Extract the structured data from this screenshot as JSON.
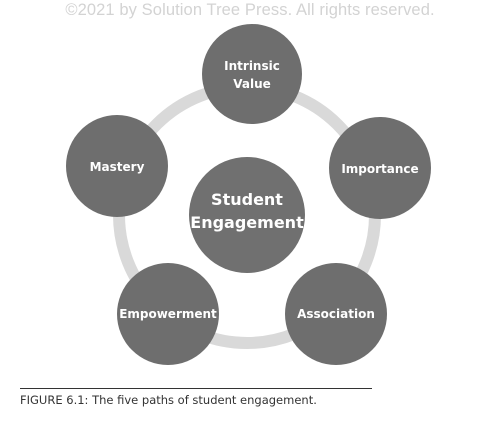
{
  "watermark": "©2021 by Solution Tree Press. All rights reserved.",
  "center": {
    "lines": [
      "Student",
      "Engagement"
    ]
  },
  "nodes": [
    {
      "id": "intrinsic-value",
      "lines": [
        "Intrinsic",
        "Value"
      ]
    },
    {
      "id": "importance",
      "lines": [
        "Importance"
      ]
    },
    {
      "id": "association",
      "lines": [
        "Association"
      ]
    },
    {
      "id": "empowerment",
      "lines": [
        "Empowerment"
      ]
    },
    {
      "id": "mastery",
      "lines": [
        "Mastery"
      ]
    }
  ],
  "caption": "FIGURE 6.1: The five paths of student engagement.",
  "colors": {
    "node_fill": "#6e6e6e",
    "center_fill": "#707070",
    "ring": "#d9d9d9",
    "text": "#ffffff"
  }
}
